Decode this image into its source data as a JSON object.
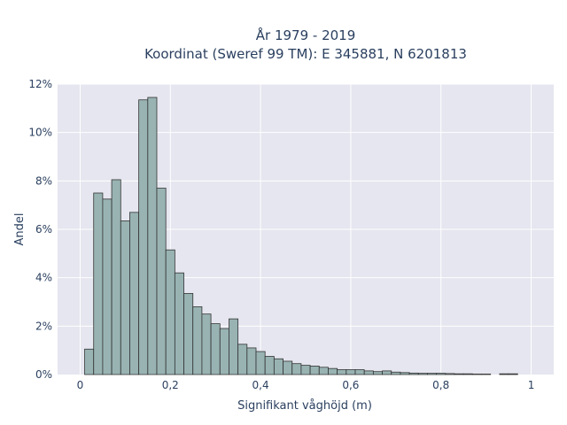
{
  "chart_data": {
    "type": "bar",
    "title": "År 1979 - 2019",
    "subtitle": "Koordinat (Sweref 99 TM): E 345881, N 6201813",
    "xlabel": "Signifikant våghöjd (m)",
    "ylabel": "Andel",
    "xlim": [
      -0.05,
      1.05
    ],
    "ylim": [
      0,
      12
    ],
    "x_ticks": [
      0,
      0.2,
      0.4,
      0.6,
      0.8,
      1
    ],
    "x_tick_labels": [
      "0",
      "0,2",
      "0,4",
      "0,6",
      "0,8",
      "1"
    ],
    "y_ticks": [
      0,
      2,
      4,
      6,
      8,
      10,
      12
    ],
    "y_tick_labels": [
      "0%",
      "2%",
      "4%",
      "6%",
      "8%",
      "10%",
      "12%"
    ],
    "grid": true,
    "bin_width": 0.02,
    "bins_start": [
      0.01,
      0.03,
      0.05,
      0.07,
      0.09,
      0.11,
      0.13,
      0.15,
      0.17,
      0.19,
      0.21,
      0.23,
      0.25,
      0.27,
      0.29,
      0.31,
      0.33,
      0.35,
      0.37,
      0.39,
      0.41,
      0.43,
      0.45,
      0.47,
      0.49,
      0.51,
      0.53,
      0.55,
      0.57,
      0.59,
      0.61,
      0.63,
      0.65,
      0.67,
      0.69,
      0.71,
      0.73,
      0.75,
      0.77,
      0.79,
      0.81,
      0.83,
      0.85,
      0.87,
      0.89,
      0.91,
      0.93,
      0.95
    ],
    "values": [
      1.05,
      7.5,
      7.25,
      8.05,
      6.35,
      6.7,
      11.35,
      11.45,
      7.7,
      5.15,
      4.2,
      3.35,
      2.8,
      2.5,
      2.1,
      1.9,
      2.3,
      1.25,
      1.1,
      0.95,
      0.75,
      0.65,
      0.55,
      0.45,
      0.38,
      0.35,
      0.3,
      0.25,
      0.2,
      0.2,
      0.2,
      0.15,
      0.12,
      0.15,
      0.1,
      0.08,
      0.06,
      0.05,
      0.05,
      0.05,
      0.04,
      0.03,
      0.03,
      0.02,
      0.02,
      0.0,
      0.03,
      0.03
    ],
    "colors": {
      "plot_bg": "#e5e6ef",
      "bar_fill": "#99b3b3",
      "bar_stroke": "#333333",
      "grid": "#ffffff",
      "text": "#2a3f5f"
    }
  }
}
